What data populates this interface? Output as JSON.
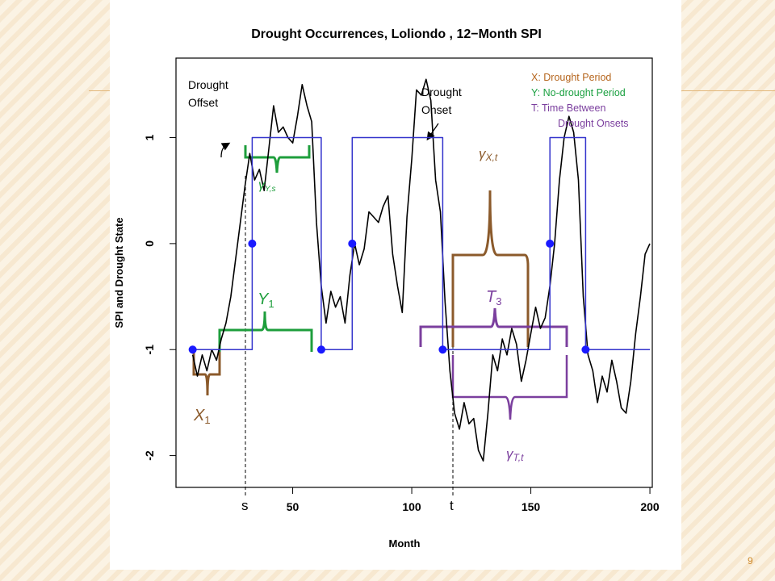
{
  "slide": {
    "page_number": "9"
  },
  "chart_data": {
    "type": "line",
    "title": "Drought Occurrences,  Loliondo , 12−Month SPI",
    "xlabel": "Month",
    "ylabel": "SPI and Drought State",
    "xlim": [
      1,
      201
    ],
    "ylim": [
      -2.3,
      1.75
    ],
    "x_ticks": [
      {
        "value": 50,
        "label": "50"
      },
      {
        "value": 100,
        "label": "100"
      },
      {
        "value": 150,
        "label": "150"
      },
      {
        "value": 200,
        "label": "200"
      }
    ],
    "y_ticks": [
      {
        "value": -2,
        "label": "-2"
      },
      {
        "value": -1,
        "label": "-1"
      },
      {
        "value": 0,
        "label": "0"
      },
      {
        "value": 1,
        "label": "1"
      }
    ],
    "grid": false,
    "series": [
      {
        "color": "#000000",
        "points": [
          [
            8,
            -1.05
          ],
          [
            10,
            -1.25
          ],
          [
            12,
            -1.05
          ],
          [
            14,
            -1.2
          ],
          [
            16,
            -1.0
          ],
          [
            18,
            -1.1
          ],
          [
            20,
            -0.9
          ],
          [
            22,
            -0.75
          ],
          [
            24,
            -0.5
          ],
          [
            26,
            -0.15
          ],
          [
            28,
            0.2
          ],
          [
            30,
            0.55
          ],
          [
            32,
            0.85
          ],
          [
            34,
            0.6
          ],
          [
            36,
            0.7
          ],
          [
            38,
            0.5
          ],
          [
            40,
            0.9
          ],
          [
            42,
            1.3
          ],
          [
            44,
            1.05
          ],
          [
            46,
            1.1
          ],
          [
            48,
            1.0
          ],
          [
            50,
            0.95
          ],
          [
            52,
            1.2
          ],
          [
            54,
            1.5
          ],
          [
            56,
            1.3
          ],
          [
            58,
            1.15
          ],
          [
            60,
            0.2
          ],
          [
            62,
            -0.4
          ],
          [
            64,
            -0.75
          ],
          [
            66,
            -0.45
          ],
          [
            68,
            -0.6
          ],
          [
            70,
            -0.5
          ],
          [
            72,
            -0.75
          ],
          [
            74,
            -0.3
          ],
          [
            76,
            0.0
          ],
          [
            78,
            -0.2
          ],
          [
            80,
            -0.05
          ],
          [
            82,
            0.3
          ],
          [
            84,
            0.25
          ],
          [
            86,
            0.2
          ],
          [
            88,
            0.35
          ],
          [
            90,
            0.45
          ],
          [
            92,
            -0.1
          ],
          [
            94,
            -0.4
          ],
          [
            96,
            -0.65
          ],
          [
            98,
            0.25
          ],
          [
            100,
            0.8
          ],
          [
            102,
            1.45
          ],
          [
            104,
            1.4
          ],
          [
            106,
            1.55
          ],
          [
            108,
            1.35
          ],
          [
            110,
            0.6
          ],
          [
            112,
            0.3
          ],
          [
            114,
            -0.55
          ],
          [
            116,
            -1.2
          ],
          [
            118,
            -1.6
          ],
          [
            120,
            -1.75
          ],
          [
            122,
            -1.5
          ],
          [
            124,
            -1.7
          ],
          [
            126,
            -1.65
          ],
          [
            128,
            -1.95
          ],
          [
            130,
            -2.05
          ],
          [
            132,
            -1.6
          ],
          [
            134,
            -1.05
          ],
          [
            136,
            -1.2
          ],
          [
            138,
            -0.9
          ],
          [
            140,
            -1.05
          ],
          [
            142,
            -0.8
          ],
          [
            144,
            -0.95
          ],
          [
            146,
            -1.3
          ],
          [
            148,
            -1.1
          ],
          [
            150,
            -0.85
          ],
          [
            152,
            -0.6
          ],
          [
            154,
            -0.8
          ],
          [
            156,
            -0.7
          ],
          [
            158,
            -0.4
          ],
          [
            160,
            0.0
          ],
          [
            162,
            0.6
          ],
          [
            164,
            1.0
          ],
          [
            166,
            1.2
          ],
          [
            168,
            1.05
          ],
          [
            170,
            0.6
          ],
          [
            172,
            -0.5
          ],
          [
            174,
            -1.05
          ],
          [
            176,
            -1.2
          ],
          [
            178,
            -1.5
          ],
          [
            180,
            -1.25
          ],
          [
            182,
            -1.4
          ],
          [
            184,
            -1.1
          ],
          [
            186,
            -1.3
          ],
          [
            188,
            -1.55
          ],
          [
            190,
            -1.6
          ],
          [
            192,
            -1.3
          ],
          [
            194,
            -0.85
          ],
          [
            196,
            -0.5
          ],
          [
            198,
            -0.1
          ],
          [
            200,
            0.0
          ]
        ]
      },
      {
        "color": "#3333cc",
        "points": [
          [
            8,
            -1
          ],
          [
            33,
            -1
          ],
          [
            33,
            1
          ],
          [
            62,
            1
          ],
          [
            62,
            -1
          ],
          [
            75,
            -1
          ],
          [
            75,
            1
          ],
          [
            113,
            1
          ],
          [
            113,
            -1
          ],
          [
            158,
            -1
          ],
          [
            158,
            1
          ],
          [
            173,
            1
          ],
          [
            173,
            -1
          ],
          [
            200,
            -1
          ]
        ]
      }
    ],
    "markers": [
      [
        8,
        -1
      ],
      [
        33,
        0
      ],
      [
        62,
        -1
      ],
      [
        75,
        0
      ],
      [
        113,
        -1
      ],
      [
        158,
        0
      ],
      [
        173,
        -1
      ]
    ],
    "annotations": {
      "drought_offset": "Drought\nOffset",
      "drought_onset": "Drought\nOnset",
      "legend_lines": [
        {
          "text": "X: Drought Period",
          "color": "#b5651d"
        },
        {
          "text": "Y: No-drought Period",
          "color": "#1aa040"
        },
        {
          "text": "T: Time Between",
          "color": "#7b3f9e"
        },
        {
          "text": "Drought Onsets",
          "color": "#7b3f9e"
        }
      ],
      "gamma": "γ",
      "gamma_x_sub": "X,t",
      "gamma_y_sub": "Y,s",
      "gamma_t_sub": "T,t",
      "y1_main": "Y",
      "y1_sub": "1",
      "x1_main": "X",
      "x1_sub": "1",
      "t3_main": "T",
      "t3_sub": "3",
      "s_label": "s",
      "t_label": "t"
    },
    "colors": {
      "brown": "#8b5a2b",
      "green": "#1e9e3c",
      "purple": "#7b3f9e",
      "blue": "#3333cc",
      "marker": "#1a1aff"
    }
  }
}
